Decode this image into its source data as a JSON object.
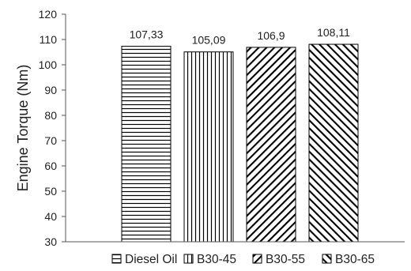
{
  "chart_data": {
    "type": "bar",
    "title": "",
    "xlabel": "",
    "ylabel": "Engine Torque (Nm)",
    "ylim": [
      30,
      120
    ],
    "y_ticks": [
      30,
      40,
      50,
      60,
      70,
      80,
      90,
      100,
      110,
      120
    ],
    "grid": false,
    "legend_position": "bottom",
    "categories": [
      "Diesel Oil",
      "B30-45",
      "B30-55",
      "B30-65"
    ],
    "values": [
      107.33,
      105.09,
      106.9,
      108.11
    ],
    "data_labels": [
      "107,33",
      "105,09",
      "106,9",
      "108,11"
    ],
    "series": [
      {
        "name": "Diesel Oil",
        "value": 107.33,
        "pattern": "horizontal-lines"
      },
      {
        "name": "B30-45",
        "value": 105.09,
        "pattern": "vertical-lines"
      },
      {
        "name": "B30-55",
        "value": 106.9,
        "pattern": "forward-diagonal"
      },
      {
        "name": "B30-65",
        "value": 108.11,
        "pattern": "backward-diagonal"
      }
    ],
    "colors": {
      "stroke": "#000000",
      "background": "#ffffff",
      "axis": "#555555",
      "text": "#222222"
    }
  }
}
